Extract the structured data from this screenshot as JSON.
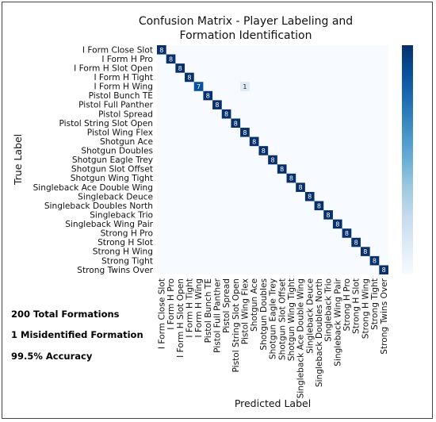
{
  "chart_data": {
    "type": "heatmap",
    "title_lines": [
      "Confusion Matrix - Player Labeling and",
      "Formation Identification"
    ],
    "xlabel": "Predicted Label",
    "ylabel": "True Label",
    "categories": [
      "I Form Close Slot",
      "I Form H Pro",
      "I Form H Slot Open",
      "I Form H Tight",
      "I Form H Wing",
      "Pistol Bunch TE",
      "Pistol Full Panther",
      "Pistol Spread",
      "Pistol String Slot Open",
      "Pistol Wing Flex",
      "Shotgun Ace",
      "Shotgun Doubles",
      "Shotgun Eagle Trey",
      "Shotgun Slot Offset",
      "Shotgun Wing Tight",
      "Singleback Ace Double Wing",
      "Singleback Deuce",
      "Singleback Doubles North",
      "Singleback Trio",
      "Singleback Wing Pair",
      "Strong H Pro",
      "Strong H Slot",
      "Strong H Wing",
      "Strong Tight",
      "Strong Twins Over"
    ],
    "cells": [
      {
        "row": 0,
        "col": 0,
        "value": 8
      },
      {
        "row": 1,
        "col": 1,
        "value": 8
      },
      {
        "row": 2,
        "col": 2,
        "value": 8
      },
      {
        "row": 3,
        "col": 3,
        "value": 8
      },
      {
        "row": 4,
        "col": 4,
        "value": 7
      },
      {
        "row": 4,
        "col": 9,
        "value": 1
      },
      {
        "row": 5,
        "col": 5,
        "value": 8
      },
      {
        "row": 6,
        "col": 6,
        "value": 8
      },
      {
        "row": 7,
        "col": 7,
        "value": 8
      },
      {
        "row": 8,
        "col": 8,
        "value": 8
      },
      {
        "row": 9,
        "col": 9,
        "value": 8
      },
      {
        "row": 10,
        "col": 10,
        "value": 8
      },
      {
        "row": 11,
        "col": 11,
        "value": 8
      },
      {
        "row": 12,
        "col": 12,
        "value": 8
      },
      {
        "row": 13,
        "col": 13,
        "value": 8
      },
      {
        "row": 14,
        "col": 14,
        "value": 8
      },
      {
        "row": 15,
        "col": 15,
        "value": 8
      },
      {
        "row": 16,
        "col": 16,
        "value": 8
      },
      {
        "row": 17,
        "col": 17,
        "value": 8
      },
      {
        "row": 18,
        "col": 18,
        "value": 8
      },
      {
        "row": 19,
        "col": 19,
        "value": 8
      },
      {
        "row": 20,
        "col": 20,
        "value": 8
      },
      {
        "row": 21,
        "col": 21,
        "value": 8
      },
      {
        "row": 22,
        "col": 22,
        "value": 8
      },
      {
        "row": 23,
        "col": 23,
        "value": 8
      },
      {
        "row": 24,
        "col": 24,
        "value": 8
      }
    ],
    "value_range": [
      0,
      8
    ],
    "colormap": [
      "#f7fbff",
      "#deebf7",
      "#c6dbef",
      "#9ecae1",
      "#6baed6",
      "#4292c6",
      "#2171b5",
      "#08519c",
      "#08306b"
    ],
    "colorbar": "right",
    "grid": false
  },
  "summary": {
    "total": "200 Total Formations",
    "misidentified": "1 Misidentified Formation",
    "accuracy": "99.5% Accuracy"
  }
}
